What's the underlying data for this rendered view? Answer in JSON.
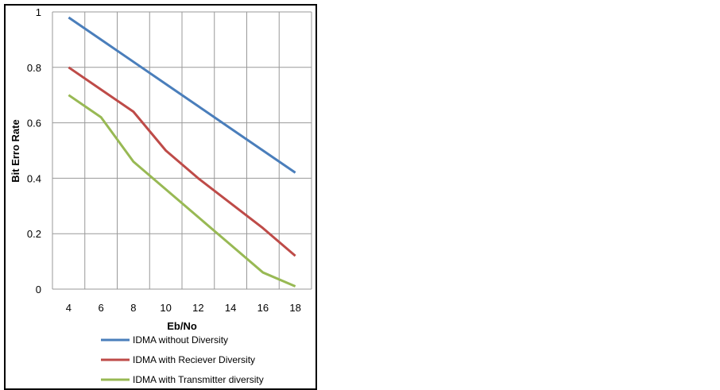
{
  "chart_data": {
    "type": "line",
    "title": "",
    "xlabel": "Eb/No",
    "ylabel": "Bit Erro Rate",
    "x": [
      4,
      6,
      8,
      10,
      12,
      14,
      16,
      18
    ],
    "x_tick_labels": [
      "4",
      "6",
      "8",
      "10",
      "12",
      "14",
      "16",
      "18"
    ],
    "y_tick_labels": [
      "0",
      "0.2",
      "0.4",
      "0.6",
      "0.8",
      "1"
    ],
    "ylim": [
      0,
      1
    ],
    "grid": true,
    "legend_placement": "bottom",
    "series": [
      {
        "name": "IDMA without Diversity",
        "color": "#4a7ebb",
        "values": [
          0.98,
          0.9,
          0.82,
          0.74,
          0.66,
          0.58,
          0.5,
          0.42
        ]
      },
      {
        "name": "IDMA with Reciever Diversity",
        "color": "#be4b48",
        "values": [
          0.8,
          0.72,
          0.64,
          0.5,
          0.4,
          0.31,
          0.22,
          0.12
        ]
      },
      {
        "name": "IDMA with Transmitter diversity",
        "color": "#98b954",
        "values": [
          0.7,
          0.62,
          0.46,
          0.36,
          0.26,
          0.16,
          0.06,
          0.01
        ]
      }
    ]
  }
}
